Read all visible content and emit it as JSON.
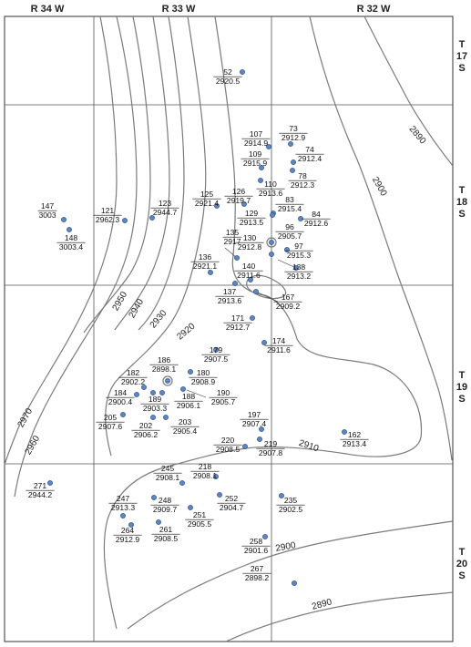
{
  "ranges": [
    "R 34 W",
    "R 33 W",
    "R 32 W"
  ],
  "townships": [
    {
      "t": "T",
      "n": "17",
      "s": "S"
    },
    {
      "t": "T",
      "n": "18",
      "s": "S"
    },
    {
      "t": "T",
      "n": "19",
      "s": "S"
    },
    {
      "t": "T",
      "n": "20",
      "s": "S"
    }
  ],
  "contour_labels": [
    "2970",
    "2960",
    "2950",
    "2940",
    "2930",
    "2920",
    "2910",
    "2900",
    "2890",
    "2890",
    "2900"
  ],
  "wells": [
    {
      "id": "52",
      "elev": "2920.5"
    },
    {
      "id": "107",
      "elev": "2914.9"
    },
    {
      "id": "73",
      "elev": "2912.9"
    },
    {
      "id": "74",
      "elev": "2912.4"
    },
    {
      "id": "109",
      "elev": "2915.9"
    },
    {
      "id": "78",
      "elev": "2912.3"
    },
    {
      "id": "110",
      "elev": "2913.6"
    },
    {
      "id": "147",
      "elev": "3003"
    },
    {
      "id": "121",
      "elev": "2962.3"
    },
    {
      "id": "123",
      "elev": "2944.7"
    },
    {
      "id": "125",
      "elev": "2921.4"
    },
    {
      "id": "126",
      "elev": "2919.7"
    },
    {
      "id": "83",
      "elev": "2915.4"
    },
    {
      "id": "84",
      "elev": "2912.6"
    },
    {
      "id": "129",
      "elev": "2913.5"
    },
    {
      "id": "96",
      "elev": "2905.7"
    },
    {
      "id": "148",
      "elev": "3003.4"
    },
    {
      "id": "135",
      "elev": "2917"
    },
    {
      "id": "130",
      "elev": "2912.8"
    },
    {
      "id": "97",
      "elev": "2915.3"
    },
    {
      "id": "136",
      "elev": "2921.1"
    },
    {
      "id": "140",
      "elev": "2911.6"
    },
    {
      "id": "138",
      "elev": "2913.2"
    },
    {
      "id": "137",
      "elev": "2913.6"
    },
    {
      "id": "167",
      "elev": "2909.2"
    },
    {
      "id": "171",
      "elev": "2912.7"
    },
    {
      "id": "174",
      "elev": "2911.6"
    },
    {
      "id": "179",
      "elev": "2907.5"
    },
    {
      "id": "186",
      "elev": "2898.1"
    },
    {
      "id": "180",
      "elev": "2908.9"
    },
    {
      "id": "182",
      "elev": "2902.2"
    },
    {
      "id": "190",
      "elev": "2905.7"
    },
    {
      "id": "184",
      "elev": "2900.4"
    },
    {
      "id": "189",
      "elev": "2903.3"
    },
    {
      "id": "188",
      "elev": "2906.1"
    },
    {
      "id": "197",
      "elev": "2907.4"
    },
    {
      "id": "205",
      "elev": "2907.6"
    },
    {
      "id": "202",
      "elev": "2906.2"
    },
    {
      "id": "203",
      "elev": "2905.4"
    },
    {
      "id": "162",
      "elev": "2913.4"
    },
    {
      "id": "220",
      "elev": "2908.5"
    },
    {
      "id": "219",
      "elev": "2907.8"
    },
    {
      "id": "245",
      "elev": "2908.1"
    },
    {
      "id": "218",
      "elev": "2908.1"
    },
    {
      "id": "271",
      "elev": "2944.2"
    },
    {
      "id": "247",
      "elev": "2913.3"
    },
    {
      "id": "248",
      "elev": "2909.7"
    },
    {
      "id": "252",
      "elev": "2904.7"
    },
    {
      "id": "235",
      "elev": "2902.5"
    },
    {
      "id": "251",
      "elev": "2905.5"
    },
    {
      "id": "264",
      "elev": "2912.9"
    },
    {
      "id": "261",
      "elev": "2908.5"
    },
    {
      "id": "258",
      "elev": "2901.6"
    },
    {
      "id": "267",
      "elev": "2898.2"
    }
  ],
  "colors": {
    "well": "#5b86c9",
    "contour": "#7a7a7a",
    "grid": "#555555"
  }
}
